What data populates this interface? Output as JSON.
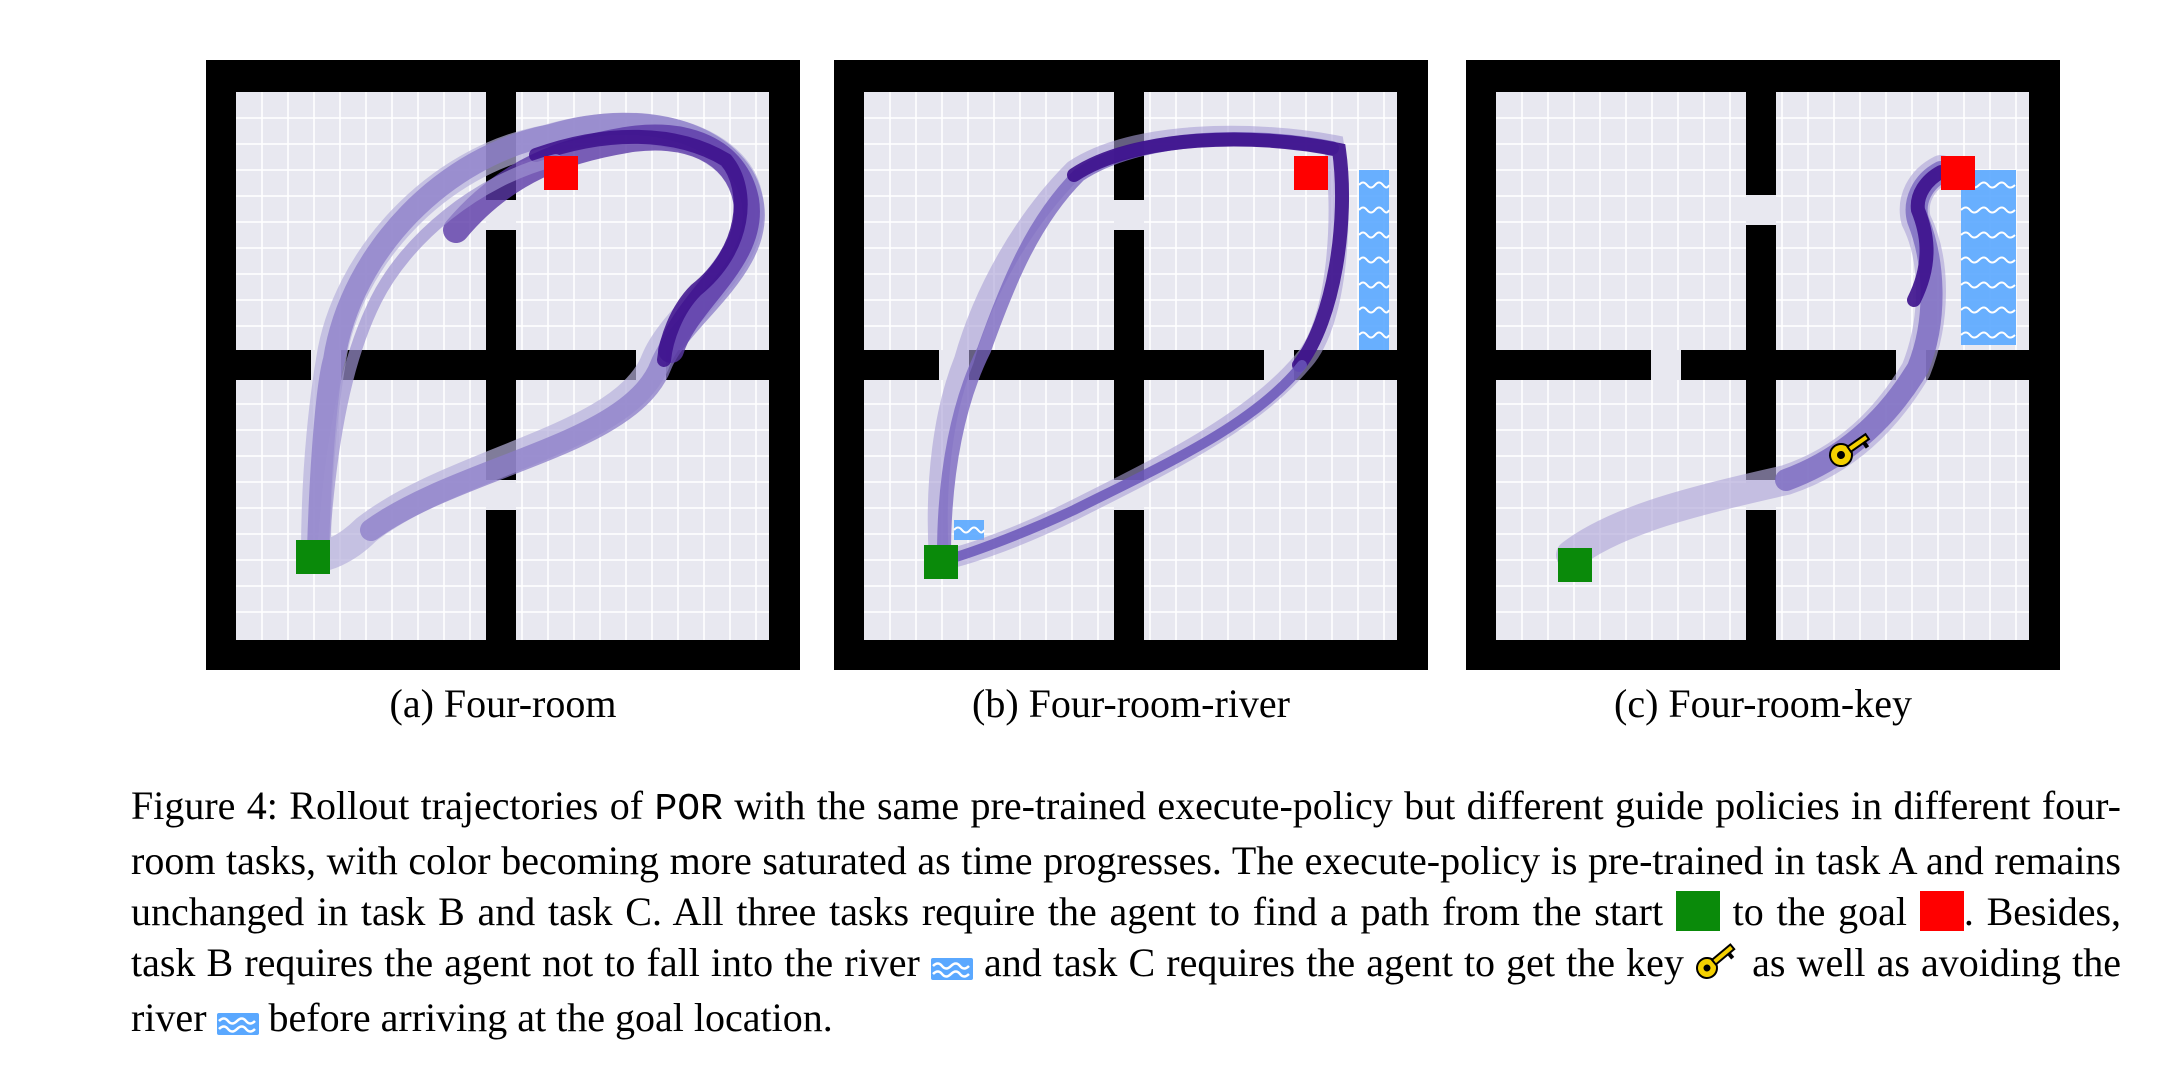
{
  "figure": {
    "panels": [
      {
        "id": "a",
        "label": "(a) Four-room"
      },
      {
        "id": "b",
        "label": "(b) Four-room-river"
      },
      {
        "id": "c",
        "label": "(c) Four-room-key"
      }
    ],
    "caption": {
      "lead": "Figure 4: Rollout trajectories of",
      "method": "POR",
      "text1": "with the same pre-trained execute-policy but different guide policies in different four-room tasks, with color becoming more saturated as time progresses. The execute-policy is pre-trained in task A and remains unchanged in task B and task C. All three tasks require the agent to find a path from the start",
      "text2": "to the goal",
      "text3": ". Besides, task B requires the agent not to fall into the river",
      "text4": "and task C requires the agent to get the key",
      "text5": "as well as avoiding the river",
      "text6": "before arriving at the goal location."
    },
    "colors": {
      "wall": "#000000",
      "floor": "#e8e8f0",
      "start": "#0a8a0a",
      "goal": "#ff0000",
      "river": "#5aa8ff",
      "key": "#f4d000",
      "trajectory_dark": "#3c0f8c",
      "trajectory_light": "#b0a8d8"
    },
    "icons": [
      "start-square-icon",
      "goal-square-icon",
      "river-icon",
      "key-icon"
    ]
  }
}
